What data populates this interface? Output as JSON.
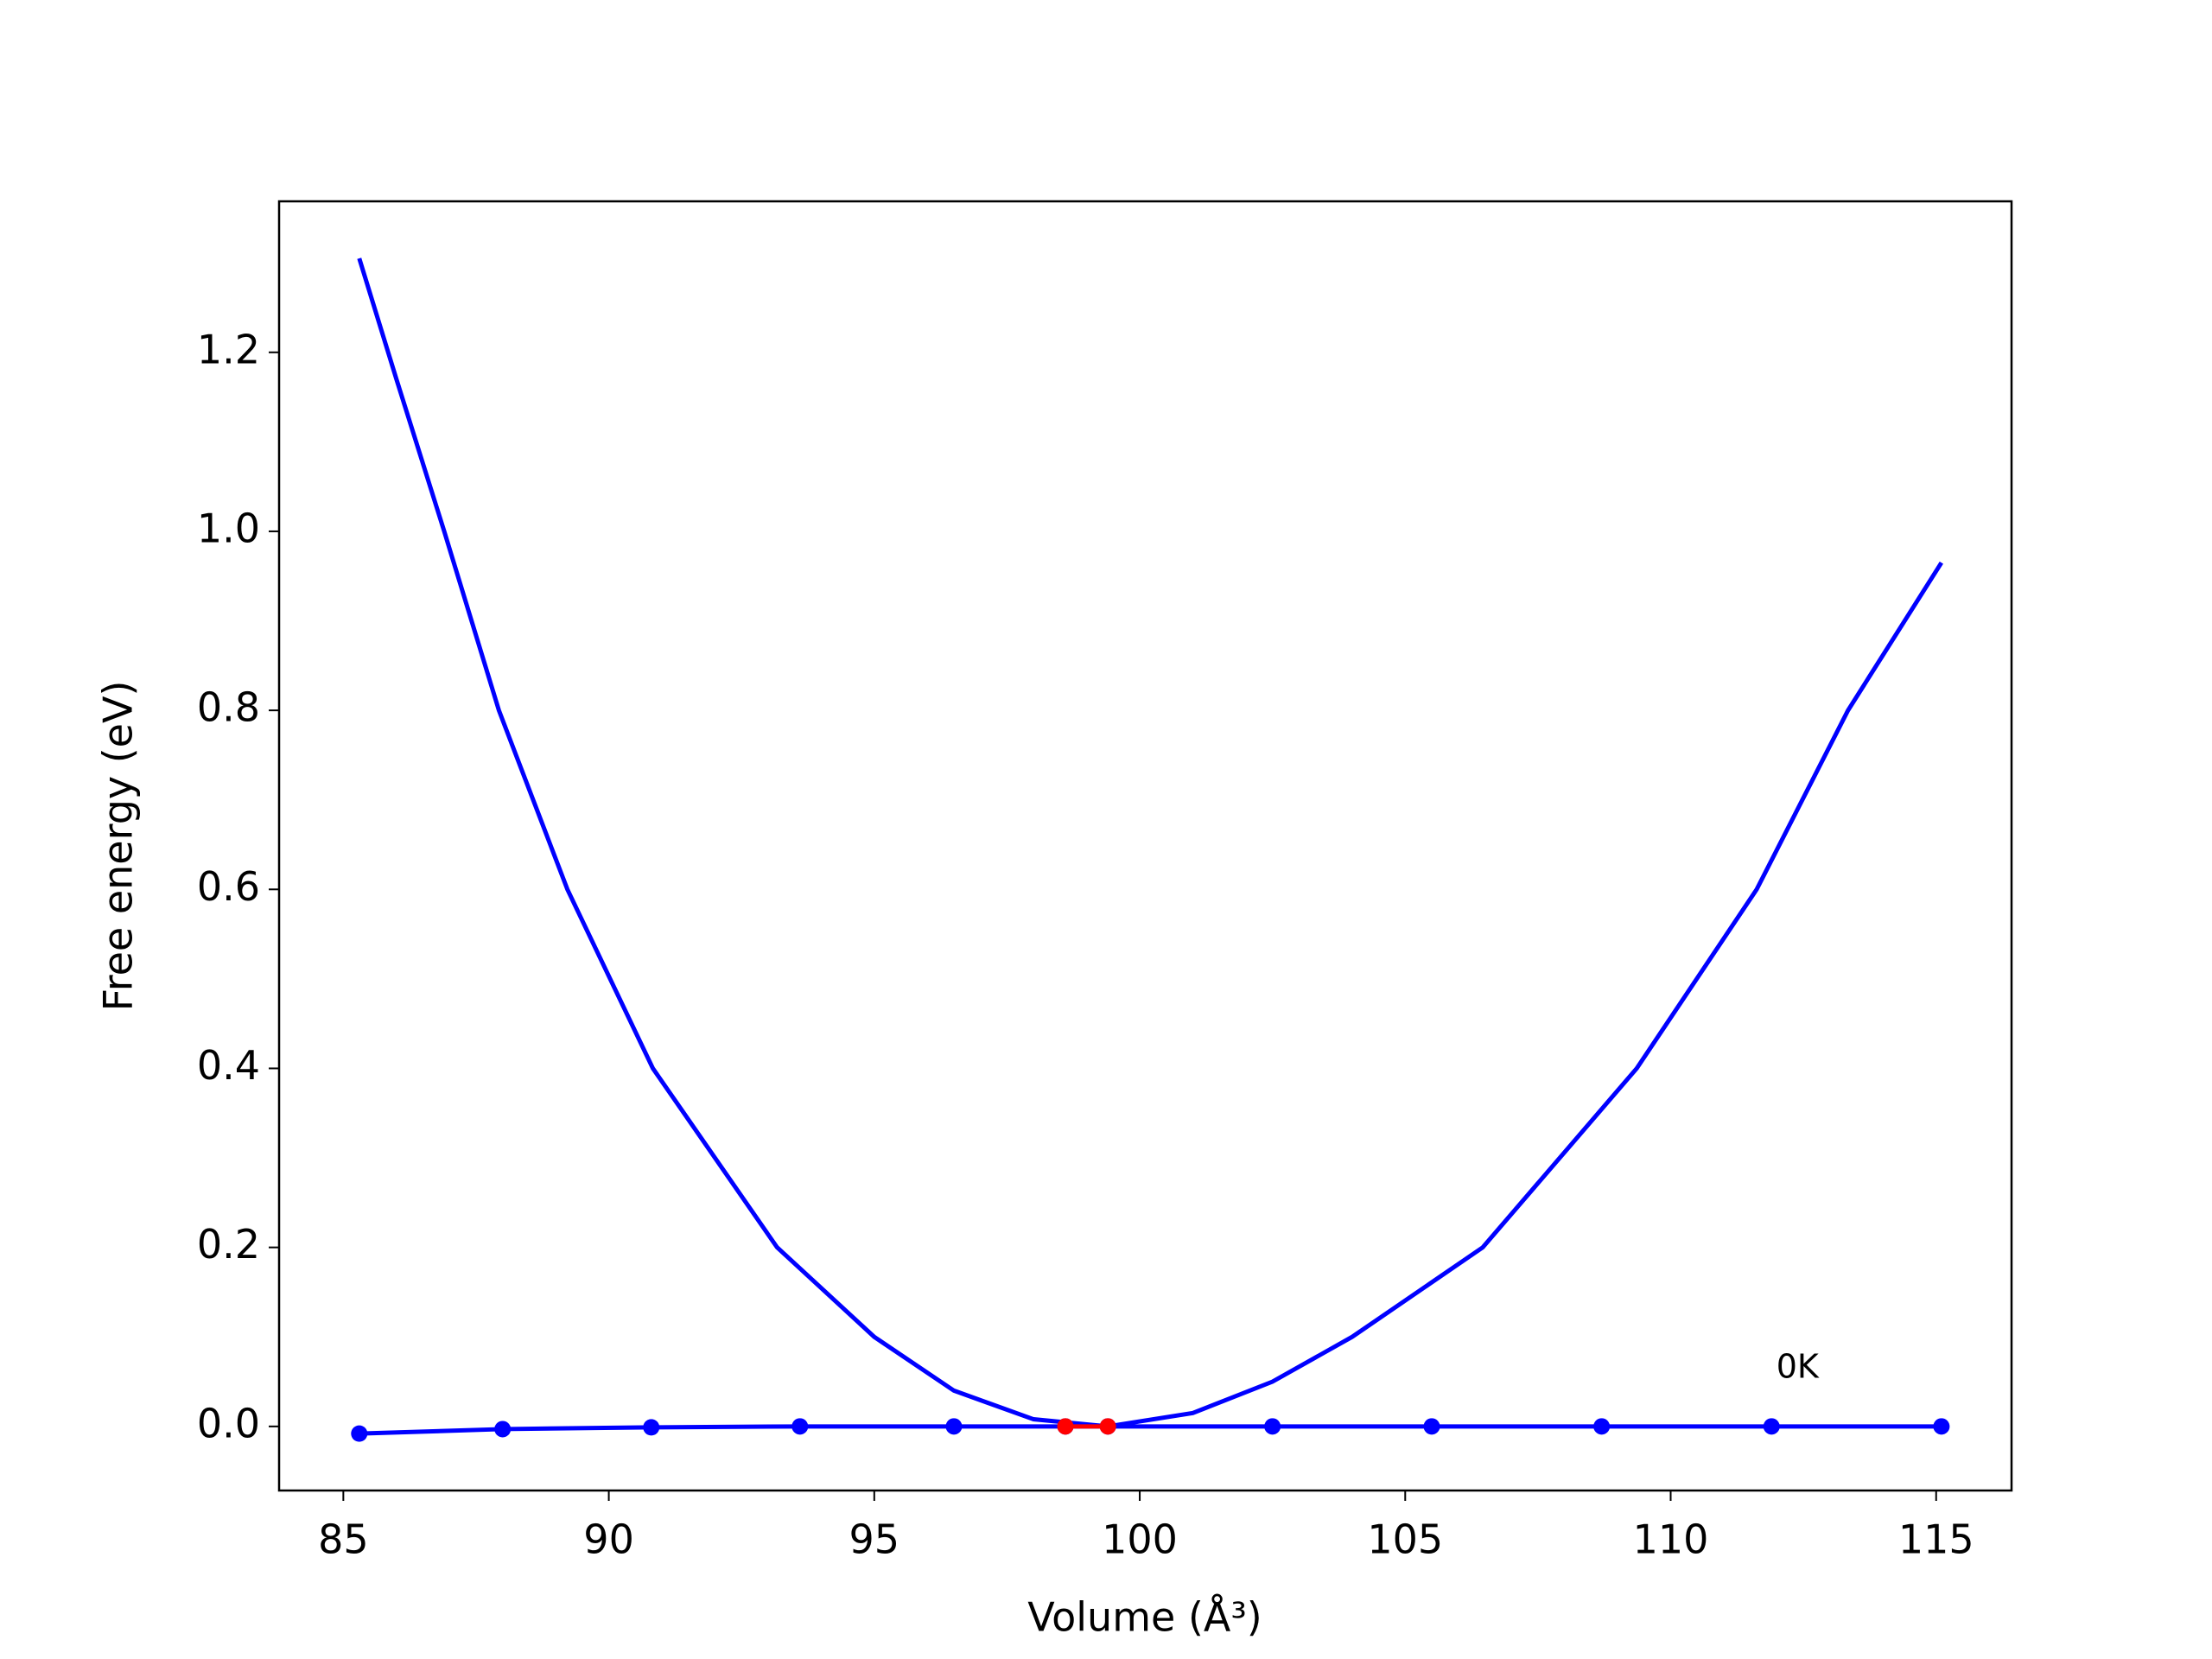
{
  "chart_data": {
    "type": "line",
    "xlabel": "Volume (Å³)",
    "ylabel": "Free energy (eV)",
    "annotation": "0K",
    "xlim": [
      83.79,
      116.42
    ],
    "ylim": [
      -0.0716,
      1.3687
    ],
    "xticks": [
      85,
      90,
      95,
      100,
      105,
      110,
      115
    ],
    "yticks": [
      {
        "value": 0,
        "label": "0.0"
      },
      0.2,
      0.4,
      0.6,
      0.8,
      {
        "value": 1,
        "label": "1.0"
      },
      1.2
    ],
    "series": [
      {
        "color": "#0000ff",
        "markers": false,
        "x": [
          85.3,
          86.0,
          86.9,
          87.93,
          89.22,
          90.83,
          93.17,
          95.0,
          96.5,
          98.0,
          99.4,
          101.0,
          102.5,
          104.0,
          106.46,
          109.36,
          111.62,
          113.34,
          115.1
        ],
        "values": [
          1.305,
          1.17,
          1.0,
          0.8,
          0.6,
          0.4,
          0.2,
          0.1,
          0.04,
          0.008,
          0.0,
          0.015,
          0.05,
          0.1,
          0.2,
          0.4,
          0.6,
          0.8,
          0.965
        ]
      },
      {
        "color": "#0000ff",
        "markers": true,
        "x": [
          85.3,
          88.0,
          90.8,
          93.6,
          96.5,
          98.6,
          99.4,
          102.5,
          105.5,
          108.7,
          111.9,
          115.1
        ],
        "values": [
          -0.008,
          -0.003,
          -0.001,
          0.0,
          0.0,
          0.0,
          0.0,
          0.0,
          0.0,
          0.0,
          0.0,
          0.0
        ]
      },
      {
        "color": "#ff0000",
        "markers": true,
        "x": [
          98.6,
          99.4
        ],
        "values": [
          0.0,
          0.0
        ]
      }
    ]
  }
}
